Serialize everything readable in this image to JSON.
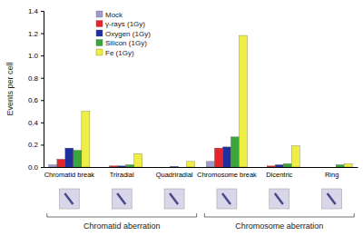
{
  "chart_data": {
    "type": "bar",
    "y_label": "Events per cell",
    "categories": [
      "Chromatid break",
      "Triradial",
      "Quadriradial",
      "Chromosome break",
      "Dicentric",
      "Ring"
    ],
    "series": [
      {
        "name": "Mock",
        "color": "#9c9ccf",
        "values": [
          0.02,
          0.0,
          0.0,
          0.05,
          0.0,
          0.0
        ]
      },
      {
        "name": "γ-rays (1Gy)",
        "color": "#e3262b",
        "values": [
          0.07,
          0.01,
          0.0,
          0.17,
          0.01,
          0.0
        ]
      },
      {
        "name": "Oxygen (1Gy)",
        "color": "#1f2f9e",
        "values": [
          0.17,
          0.01,
          0.005,
          0.18,
          0.02,
          0.0
        ]
      },
      {
        "name": "Silicon (1Gy)",
        "color": "#3aa63a",
        "values": [
          0.15,
          0.02,
          0.0,
          0.27,
          0.03,
          0.02
        ]
      },
      {
        "name": "Fe (1Gy)",
        "color": "#eeee44",
        "values": [
          0.5,
          0.12,
          0.05,
          1.18,
          0.19,
          0.03
        ]
      }
    ],
    "annotations": [
      "Chromatid aberration",
      "Chromosome aberration"
    ],
    "ylim": [
      0,
      1.4
    ],
    "yticks": [
      {
        "value": 0,
        "label": "0.0"
      },
      {
        "value": 0.2,
        "label": "0.2"
      },
      {
        "value": 0.4,
        "label": "0.4"
      },
      {
        "value": 0.6,
        "label": "0.6"
      },
      {
        "value": 0.8,
        "label": "0.8"
      },
      {
        "value": 1.0,
        "label": "1.0"
      },
      {
        "value": 1.2,
        "label": "1.2"
      },
      {
        "value": 1.4,
        "label": "1.4"
      }
    ],
    "legend": "top-left",
    "grid": false
  }
}
